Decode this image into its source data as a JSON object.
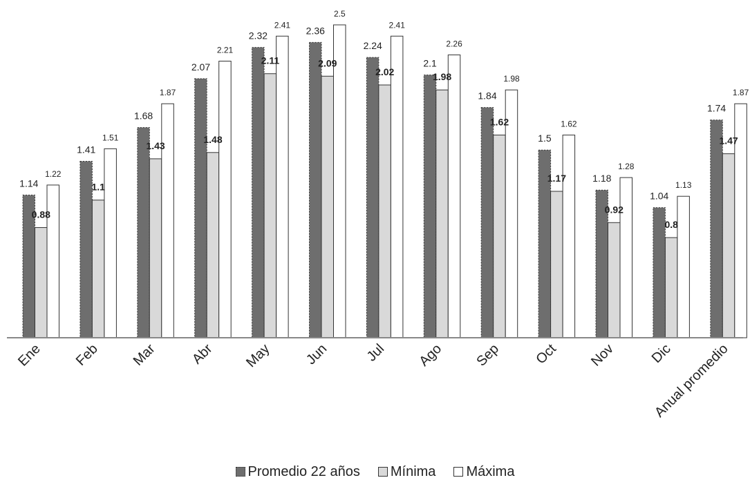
{
  "chart_data": {
    "type": "bar",
    "title": "",
    "xlabel": "",
    "ylabel": "",
    "ylim": [
      0,
      2.55
    ],
    "grid": false,
    "legend_position": "bottom",
    "categories": [
      "Ene",
      "Feb",
      "Mar",
      "Abr",
      "May",
      "Jun",
      "Jul",
      "Ago",
      "Sep",
      "Oct",
      "Nov",
      "Dic",
      "Anual promedio"
    ],
    "series": [
      {
        "name": "Promedio 22 años",
        "values": [
          1.14,
          1.41,
          1.68,
          2.07,
          2.32,
          2.36,
          2.24,
          2.1,
          1.84,
          1.5,
          1.18,
          1.04,
          1.74
        ],
        "labels": [
          "1.14",
          "1.41",
          "1.68",
          "2.07",
          "2.32",
          "2.36",
          "2.24",
          "2.1",
          "1.84",
          "1.5",
          "1.18",
          "1.04",
          "1.74"
        ],
        "color": "#6e6e6e"
      },
      {
        "name": "Mínima",
        "values": [
          0.88,
          1.1,
          1.43,
          1.48,
          2.11,
          2.09,
          2.02,
          1.98,
          1.62,
          1.17,
          0.92,
          0.8,
          1.47
        ],
        "labels": [
          "0.88",
          "1.1",
          "1.43",
          "1.48",
          "2.11",
          "2.09",
          "2.02",
          "1.98",
          "1.62",
          "1.17",
          "0.92",
          "0.8",
          "1.47"
        ],
        "color": "#d9d9d9"
      },
      {
        "name": "Máxima",
        "values": [
          1.22,
          1.51,
          1.87,
          2.21,
          2.41,
          2.5,
          2.41,
          2.26,
          1.98,
          1.62,
          1.28,
          1.13,
          1.87
        ],
        "labels": [
          "1.22",
          "1.51",
          "1.87",
          "2.21",
          "2.41",
          "2.5",
          "2.41",
          "2.26",
          "1.98",
          "1.62",
          "1.28",
          "1.13",
          "1.87"
        ],
        "color": "#ffffff"
      }
    ]
  }
}
